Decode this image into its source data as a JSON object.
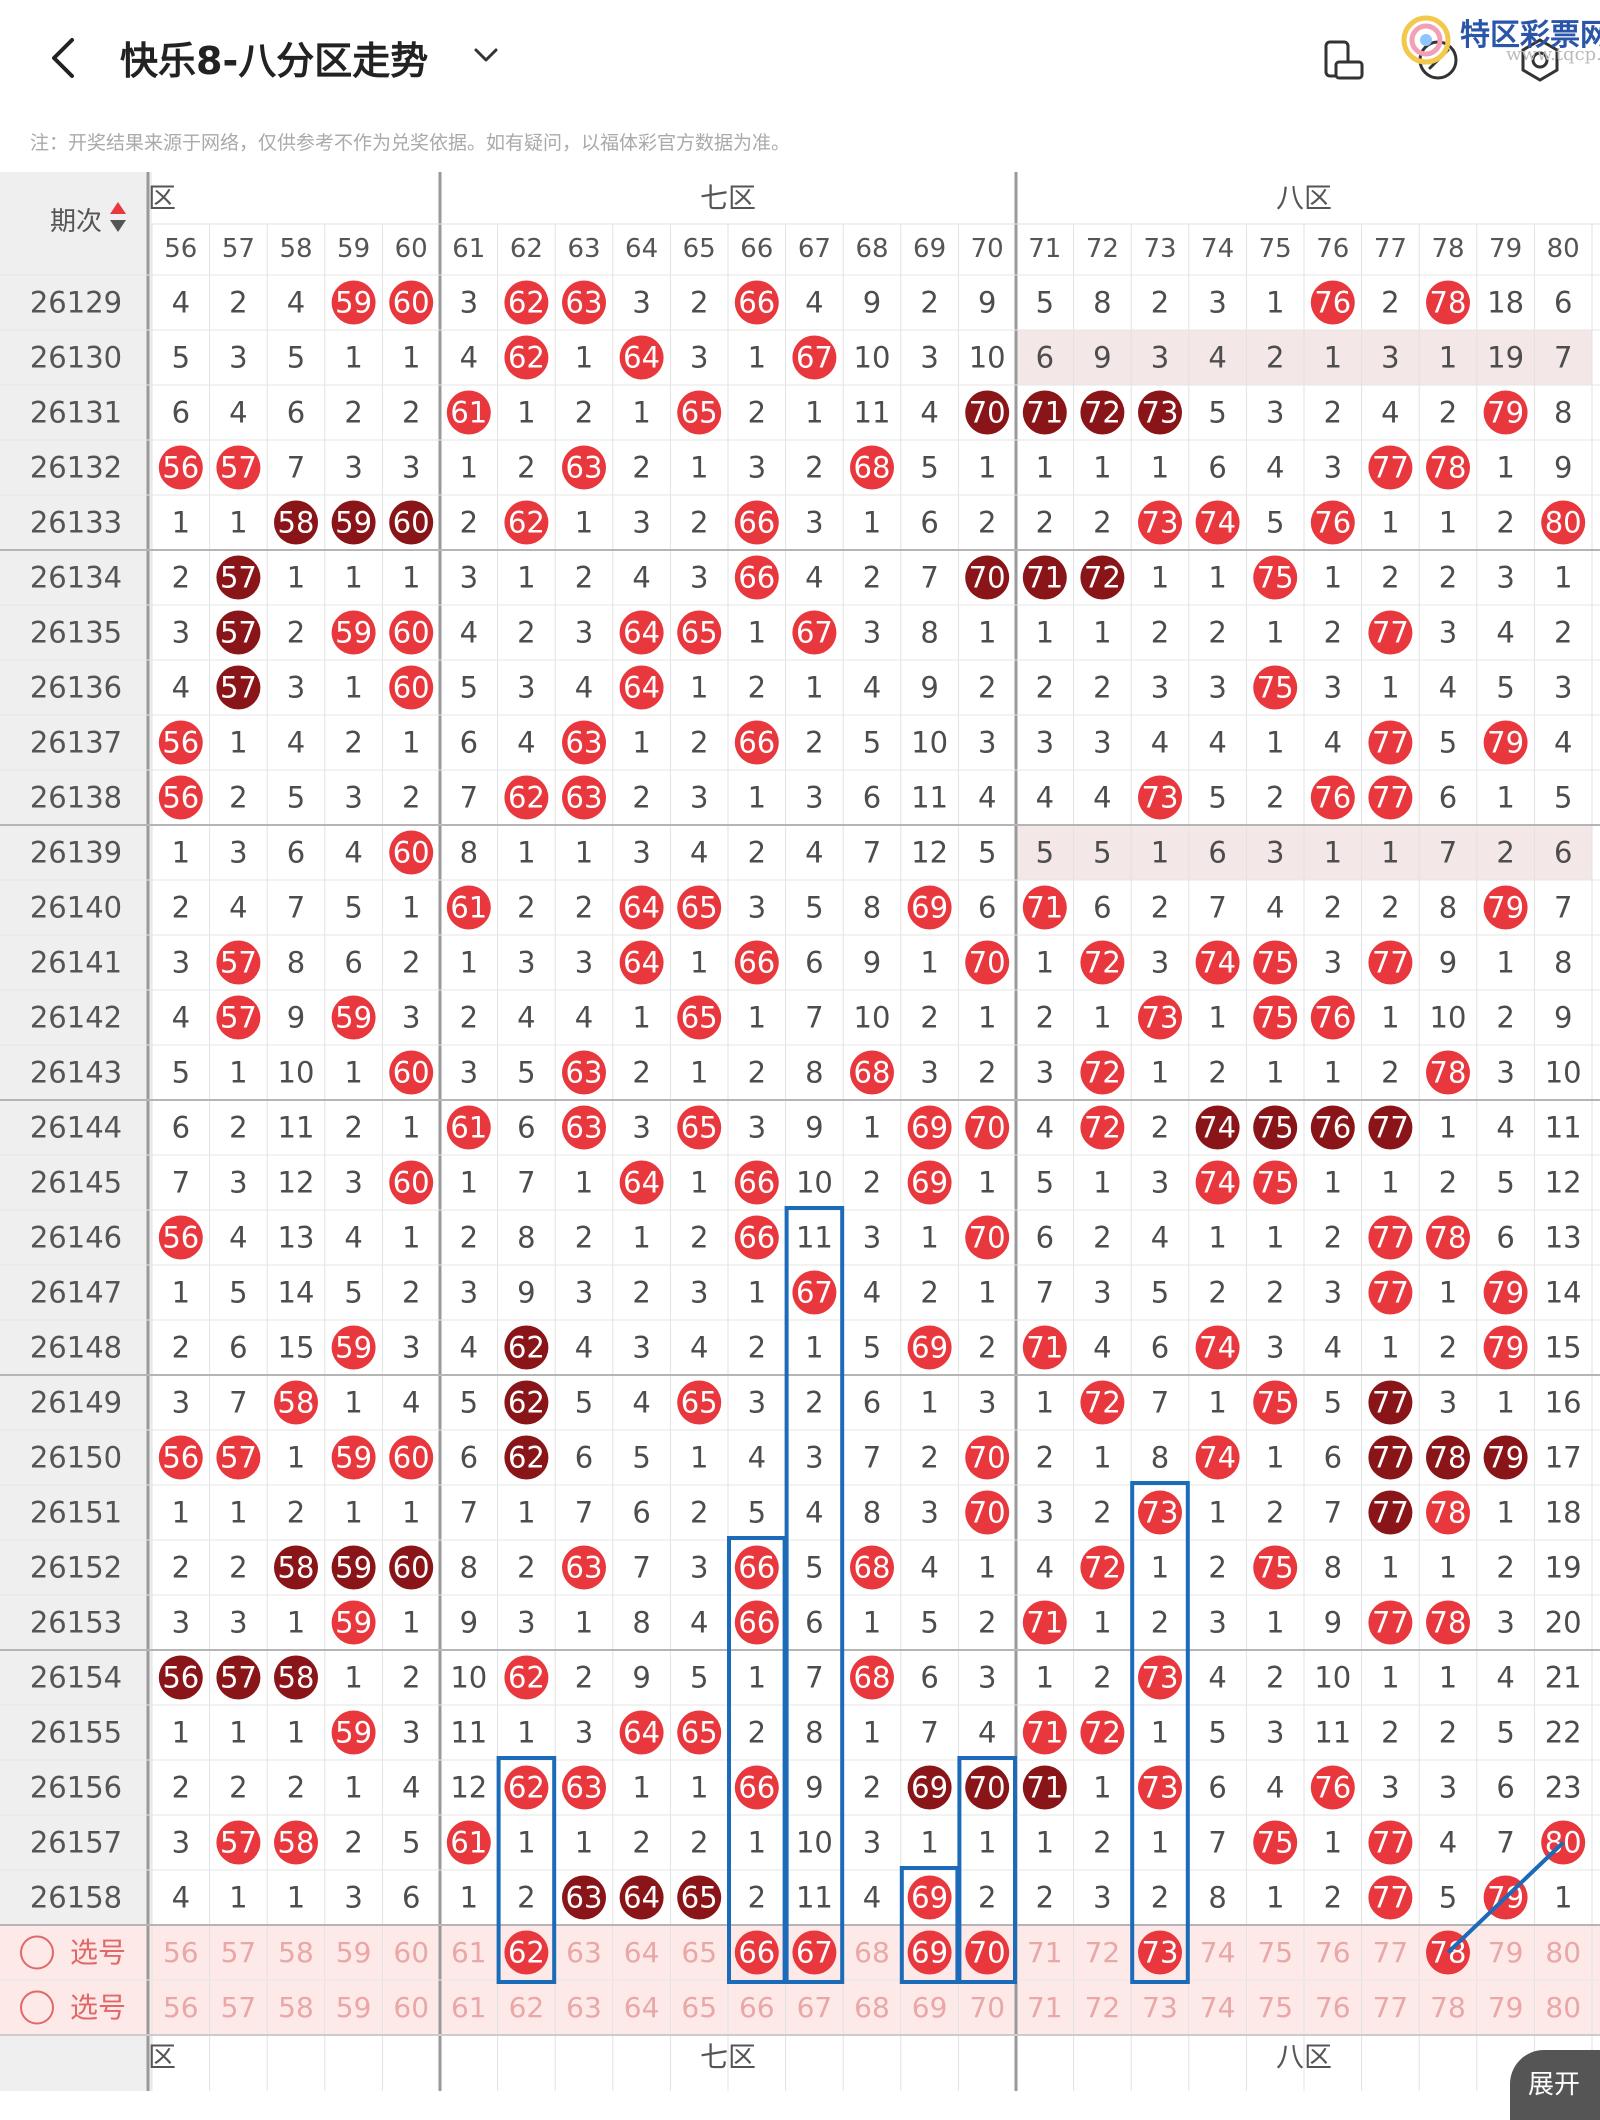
{
  "header": {
    "title": "快乐8-八分区走势",
    "note": "注：开奖结果来源于网络，仅供参考不作为兑奖依据。如有疑问，以福体彩官方数据为准。",
    "icons": [
      "back-icon",
      "chevron-down-icon",
      "screen-rotate-icon",
      "edit-icon",
      "settings-icon"
    ],
    "watermark": {
      "name": "特区彩票网",
      "site": "www.tqcp.net"
    }
  },
  "table": {
    "issue_header": "期次",
    "zones_top": [
      {
        "label": "六区",
        "visible_label": "区"
      },
      {
        "label": "七区"
      },
      {
        "label": "八区"
      }
    ],
    "columns": [
      "56",
      "57",
      "58",
      "59",
      "60",
      "61",
      "62",
      "63",
      "64",
      "65",
      "66",
      "67",
      "68",
      "69",
      "70",
      "71",
      "72",
      "73",
      "74",
      "75",
      "76",
      "77",
      "78",
      "79",
      "80"
    ],
    "rows": [
      {
        "issue": "26129",
        "cells": [
          "4",
          "2",
          "4",
          "59",
          "60",
          "3",
          "62",
          "63",
          "3",
          "2",
          "66",
          "4",
          "9",
          "2",
          "9",
          "5",
          "8",
          "2",
          "3",
          "1",
          "76",
          "2",
          "78",
          "18",
          "6"
        ],
        "dark": []
      },
      {
        "issue": "26130",
        "cells": [
          "5",
          "3",
          "5",
          "1",
          "1",
          "4",
          "62",
          "1",
          "64",
          "3",
          "1",
          "67",
          "10",
          "3",
          "10",
          "6",
          "9",
          "3",
          "4",
          "2",
          "1",
          "3",
          "1",
          "19",
          "7"
        ],
        "dark": []
      },
      {
        "issue": "26131",
        "cells": [
          "6",
          "4",
          "6",
          "2",
          "2",
          "61",
          "1",
          "2",
          "1",
          "65",
          "2",
          "1",
          "11",
          "4",
          "70",
          "71",
          "72",
          "73",
          "5",
          "3",
          "2",
          "4",
          "2",
          "79",
          "8"
        ],
        "dark": [
          "70",
          "71",
          "72",
          "73"
        ]
      },
      {
        "issue": "26132",
        "cells": [
          "56",
          "57",
          "7",
          "3",
          "3",
          "1",
          "2",
          "63",
          "2",
          "1",
          "3",
          "2",
          "68",
          "5",
          "1",
          "1",
          "1",
          "1",
          "6",
          "4",
          "3",
          "77",
          "78",
          "1",
          "9"
        ],
        "dark": []
      },
      {
        "issue": "26133",
        "cells": [
          "1",
          "1",
          "58",
          "59",
          "60",
          "2",
          "62",
          "1",
          "3",
          "2",
          "66",
          "3",
          "1",
          "6",
          "2",
          "2",
          "2",
          "73",
          "74",
          "5",
          "76",
          "1",
          "1",
          "2",
          "80"
        ],
        "dark": [
          "58",
          "59",
          "60"
        ]
      },
      {
        "issue": "26134",
        "cells": [
          "2",
          "57",
          "1",
          "1",
          "1",
          "3",
          "1",
          "2",
          "4",
          "3",
          "66",
          "4",
          "2",
          "7",
          "70",
          "71",
          "72",
          "1",
          "1",
          "75",
          "1",
          "2",
          "2",
          "3",
          "1"
        ],
        "dark": [
          "57",
          "70",
          "71",
          "72"
        ]
      },
      {
        "issue": "26135",
        "cells": [
          "3",
          "57",
          "2",
          "59",
          "60",
          "4",
          "2",
          "3",
          "64",
          "65",
          "1",
          "67",
          "3",
          "8",
          "1",
          "1",
          "1",
          "2",
          "2",
          "1",
          "2",
          "77",
          "3",
          "4",
          "2"
        ],
        "dark": [
          "57"
        ]
      },
      {
        "issue": "26136",
        "cells": [
          "4",
          "57",
          "3",
          "1",
          "60",
          "5",
          "3",
          "4",
          "64",
          "1",
          "2",
          "1",
          "4",
          "9",
          "2",
          "2",
          "2",
          "3",
          "3",
          "75",
          "3",
          "1",
          "4",
          "5",
          "3"
        ],
        "dark": [
          "57"
        ]
      },
      {
        "issue": "26137",
        "cells": [
          "56",
          "1",
          "4",
          "2",
          "1",
          "6",
          "4",
          "63",
          "1",
          "2",
          "66",
          "2",
          "5",
          "10",
          "3",
          "3",
          "3",
          "4",
          "4",
          "1",
          "4",
          "77",
          "5",
          "79",
          "4"
        ],
        "dark": []
      },
      {
        "issue": "26138",
        "cells": [
          "56",
          "2",
          "5",
          "3",
          "2",
          "7",
          "62",
          "63",
          "2",
          "3",
          "1",
          "3",
          "6",
          "11",
          "4",
          "4",
          "4",
          "73",
          "5",
          "2",
          "76",
          "77",
          "6",
          "1",
          "5"
        ],
        "dark": []
      },
      {
        "issue": "26139",
        "cells": [
          "1",
          "3",
          "6",
          "4",
          "60",
          "8",
          "1",
          "1",
          "3",
          "4",
          "2",
          "4",
          "7",
          "12",
          "5",
          "5",
          "5",
          "1",
          "6",
          "3",
          "1",
          "1",
          "7",
          "2",
          "6"
        ],
        "dark": []
      },
      {
        "issue": "26140",
        "cells": [
          "2",
          "4",
          "7",
          "5",
          "1",
          "61",
          "2",
          "2",
          "64",
          "65",
          "3",
          "5",
          "8",
          "69",
          "6",
          "71",
          "6",
          "2",
          "7",
          "4",
          "2",
          "2",
          "8",
          "79",
          "7"
        ],
        "dark": []
      },
      {
        "issue": "26141",
        "cells": [
          "3",
          "57",
          "8",
          "6",
          "2",
          "1",
          "3",
          "3",
          "64",
          "1",
          "66",
          "6",
          "9",
          "1",
          "70",
          "1",
          "72",
          "3",
          "74",
          "75",
          "3",
          "77",
          "9",
          "1",
          "8"
        ],
        "dark": []
      },
      {
        "issue": "26142",
        "cells": [
          "4",
          "57",
          "9",
          "59",
          "3",
          "2",
          "4",
          "4",
          "1",
          "65",
          "1",
          "7",
          "10",
          "2",
          "1",
          "2",
          "1",
          "73",
          "1",
          "75",
          "76",
          "1",
          "10",
          "2",
          "9"
        ],
        "dark": []
      },
      {
        "issue": "26143",
        "cells": [
          "5",
          "1",
          "10",
          "1",
          "60",
          "3",
          "5",
          "63",
          "2",
          "1",
          "2",
          "8",
          "68",
          "3",
          "2",
          "3",
          "72",
          "1",
          "2",
          "1",
          "1",
          "2",
          "78",
          "3",
          "10"
        ],
        "dark": []
      },
      {
        "issue": "26144",
        "cells": [
          "6",
          "2",
          "11",
          "2",
          "1",
          "61",
          "6",
          "63",
          "3",
          "65",
          "3",
          "9",
          "1",
          "69",
          "70",
          "4",
          "72",
          "2",
          "74",
          "75",
          "76",
          "77",
          "1",
          "4",
          "11"
        ],
        "dark": [
          "74",
          "75",
          "76",
          "77"
        ]
      },
      {
        "issue": "26145",
        "cells": [
          "7",
          "3",
          "12",
          "3",
          "60",
          "1",
          "7",
          "1",
          "64",
          "1",
          "66",
          "10",
          "2",
          "69",
          "1",
          "5",
          "1",
          "3",
          "74",
          "75",
          "1",
          "1",
          "2",
          "5",
          "12"
        ],
        "dark": []
      },
      {
        "issue": "26146",
        "cells": [
          "56",
          "4",
          "13",
          "4",
          "1",
          "2",
          "8",
          "2",
          "1",
          "2",
          "66",
          "11",
          "3",
          "1",
          "70",
          "6",
          "2",
          "4",
          "1",
          "1",
          "2",
          "77",
          "78",
          "6",
          "13"
        ],
        "dark": []
      },
      {
        "issue": "26147",
        "cells": [
          "1",
          "5",
          "14",
          "5",
          "2",
          "3",
          "9",
          "3",
          "2",
          "3",
          "1",
          "67",
          "4",
          "2",
          "1",
          "7",
          "3",
          "5",
          "2",
          "2",
          "3",
          "77",
          "1",
          "79",
          "14"
        ],
        "dark": []
      },
      {
        "issue": "26148",
        "cells": [
          "2",
          "6",
          "15",
          "59",
          "3",
          "4",
          "62",
          "4",
          "3",
          "4",
          "2",
          "1",
          "5",
          "69",
          "2",
          "71",
          "4",
          "6",
          "74",
          "3",
          "4",
          "1",
          "2",
          "79",
          "15"
        ],
        "dark": [
          "62"
        ]
      },
      {
        "issue": "26149",
        "cells": [
          "3",
          "7",
          "58",
          "1",
          "4",
          "5",
          "62",
          "5",
          "4",
          "65",
          "3",
          "2",
          "6",
          "1",
          "3",
          "1",
          "72",
          "7",
          "1",
          "75",
          "5",
          "77",
          "3",
          "1",
          "16"
        ],
        "dark": [
          "62",
          "77"
        ]
      },
      {
        "issue": "26150",
        "cells": [
          "56",
          "57",
          "1",
          "59",
          "60",
          "6",
          "62",
          "6",
          "5",
          "1",
          "4",
          "3",
          "7",
          "2",
          "70",
          "2",
          "1",
          "8",
          "74",
          "1",
          "6",
          "77",
          "78",
          "79",
          "17"
        ],
        "dark": [
          "62",
          "77",
          "78",
          "79"
        ]
      },
      {
        "issue": "26151",
        "cells": [
          "1",
          "1",
          "2",
          "1",
          "1",
          "7",
          "1",
          "7",
          "6",
          "2",
          "5",
          "4",
          "8",
          "3",
          "70",
          "3",
          "2",
          "73",
          "1",
          "2",
          "7",
          "77",
          "78",
          "1",
          "18"
        ],
        "dark": [
          "77"
        ]
      },
      {
        "issue": "26152",
        "cells": [
          "2",
          "2",
          "58",
          "59",
          "60",
          "8",
          "2",
          "63",
          "7",
          "3",
          "66",
          "5",
          "68",
          "4",
          "1",
          "4",
          "72",
          "1",
          "2",
          "75",
          "8",
          "1",
          "1",
          "2",
          "19"
        ],
        "dark": [
          "58",
          "59",
          "60"
        ]
      },
      {
        "issue": "26153",
        "cells": [
          "3",
          "3",
          "1",
          "59",
          "1",
          "9",
          "3",
          "1",
          "8",
          "4",
          "66",
          "6",
          "1",
          "5",
          "2",
          "71",
          "1",
          "2",
          "3",
          "1",
          "9",
          "77",
          "78",
          "3",
          "20"
        ],
        "dark": []
      },
      {
        "issue": "26154",
        "cells": [
          "56",
          "57",
          "58",
          "1",
          "2",
          "10",
          "62",
          "2",
          "9",
          "5",
          "1",
          "7",
          "68",
          "6",
          "3",
          "1",
          "2",
          "73",
          "4",
          "2",
          "10",
          "1",
          "1",
          "4",
          "21"
        ],
        "dark": [
          "56",
          "57",
          "58"
        ]
      },
      {
        "issue": "26155",
        "cells": [
          "1",
          "1",
          "1",
          "59",
          "3",
          "11",
          "1",
          "3",
          "64",
          "65",
          "2",
          "8",
          "1",
          "7",
          "4",
          "71",
          "72",
          "1",
          "5",
          "3",
          "11",
          "2",
          "2",
          "5",
          "22"
        ],
        "dark": []
      },
      {
        "issue": "26156",
        "cells": [
          "2",
          "2",
          "2",
          "1",
          "4",
          "12",
          "62",
          "63",
          "1",
          "1",
          "66",
          "9",
          "2",
          "69",
          "70",
          "71",
          "1",
          "73",
          "6",
          "4",
          "76",
          "3",
          "3",
          "6",
          "23"
        ],
        "dark": [
          "69",
          "70",
          "71"
        ]
      },
      {
        "issue": "26157",
        "cells": [
          "3",
          "57",
          "58",
          "2",
          "5",
          "61",
          "1",
          "1",
          "2",
          "2",
          "1",
          "10",
          "3",
          "1",
          "1",
          "1",
          "2",
          "1",
          "7",
          "75",
          "1",
          "77",
          "4",
          "7",
          "80"
        ],
        "dark": []
      },
      {
        "issue": "26158",
        "cells": [
          "4",
          "1",
          "1",
          "3",
          "6",
          "1",
          "2",
          "63",
          "64",
          "65",
          "2",
          "11",
          "4",
          "69",
          "2",
          "2",
          "3",
          "2",
          "8",
          "1",
          "2",
          "77",
          "5",
          "79",
          "1"
        ],
        "dark": [
          "63",
          "64",
          "65"
        ]
      }
    ],
    "select_rows": [
      {
        "label": "选号",
        "selected": [
          "62",
          "66",
          "67",
          "69",
          "70",
          "73",
          "78"
        ]
      },
      {
        "label": "选号",
        "selected": []
      }
    ],
    "zones_bottom": [
      {
        "label": "六区",
        "visible_label": "区"
      },
      {
        "label": "七区"
      },
      {
        "label": "八区"
      }
    ],
    "expand_label": "展开"
  },
  "colors": {
    "ball": "#e8383d",
    "ball_dark": "#8a1519",
    "selected_ball": "#e8383d",
    "box_stroke": "#1c6bb8",
    "sort_up": "#e8383d",
    "sort_down": "#555555",
    "header_bg": "#efefef",
    "select_row_bg": "#fdeae8"
  }
}
